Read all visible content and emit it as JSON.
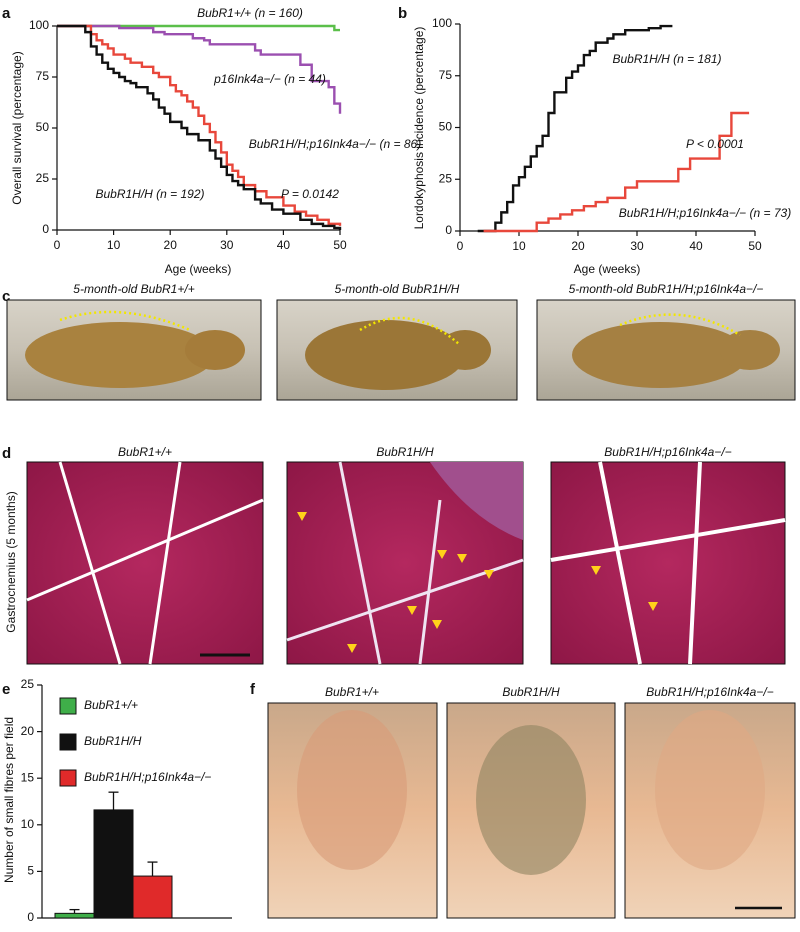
{
  "chart_data": [
    {
      "type": "line",
      "panel": "a",
      "drawstyle": "steps-post",
      "xlabel": "Age (weeks)",
      "ylabel": "Overall survival (percentage)",
      "xlim": [
        0,
        50
      ],
      "xticks": [
        0,
        10,
        20,
        30,
        40,
        50
      ],
      "ylim": [
        0,
        100
      ],
      "yticks": [
        0,
        25,
        50,
        75,
        100
      ],
      "series": [
        {
          "name": "BubR1+/+",
          "color": "#5bbf4a",
          "x": [
            0,
            49,
            50
          ],
          "values": [
            100,
            98,
            98
          ]
        },
        {
          "name": "p16Ink4a−/−",
          "color": "#9b4fb0",
          "x": [
            0,
            11,
            17,
            19,
            24,
            26,
            27,
            35,
            36,
            43,
            45,
            48,
            49,
            50
          ],
          "values": [
            100,
            99,
            97,
            96,
            94,
            93,
            91,
            88,
            86,
            81,
            73,
            70,
            62,
            57
          ]
        },
        {
          "name": "BubR1H/H;p16Ink4a−/−",
          "color": "#e8473b",
          "x": [
            0,
            6,
            7,
            8,
            9,
            10,
            12,
            13,
            15,
            17,
            18,
            20,
            21,
            22,
            23,
            24,
            25,
            26,
            27,
            28,
            29,
            30,
            31,
            32,
            33,
            35,
            37,
            40,
            42,
            44,
            46,
            48,
            50
          ],
          "values": [
            100,
            96,
            93,
            91,
            89,
            86,
            84,
            82,
            80,
            77,
            75,
            71,
            68,
            66,
            63,
            60,
            56,
            52,
            48,
            43,
            38,
            32,
            29,
            26,
            22,
            19,
            16,
            12,
            9,
            7,
            5,
            3,
            2
          ]
        },
        {
          "name": "BubR1H/H",
          "color": "#111111",
          "x": [
            0,
            5,
            6,
            7,
            8,
            9,
            10,
            11,
            12,
            13,
            14,
            16,
            17,
            18,
            19,
            20,
            22,
            23,
            25,
            27,
            28,
            29,
            30,
            31,
            32,
            33,
            35,
            36,
            38,
            40,
            43,
            45,
            47,
            49,
            50
          ],
          "values": [
            100,
            97,
            90,
            86,
            82,
            79,
            77,
            75,
            73,
            72,
            70,
            67,
            64,
            60,
            57,
            53,
            50,
            47,
            44,
            39,
            35,
            31,
            27,
            24,
            22,
            20,
            15,
            13,
            10,
            8,
            5,
            3,
            2,
            1,
            0
          ]
        }
      ],
      "annotations": [
        {
          "text": "BubR1+/+ (n = 160)",
          "color": "#5bbf4a"
        },
        {
          "text": "p16Ink4a−/− (n = 44)",
          "color": "#9b4fb0"
        },
        {
          "text": "BubR1H/H;p16Ink4a−/− (n = 86)",
          "color": "#e8473b"
        },
        {
          "text": "BubR1H/H (n = 192)",
          "color": "#111111"
        },
        {
          "text": "P = 0.0142",
          "color": "#111111"
        }
      ]
    },
    {
      "type": "line",
      "panel": "b",
      "drawstyle": "steps-post",
      "xlabel": "Age (weeks)",
      "ylabel": "Lordokyphosis incidence (percentage)",
      "xlim": [
        0,
        50
      ],
      "xticks": [
        0,
        10,
        20,
        30,
        40,
        50
      ],
      "ylim": [
        0,
        100
      ],
      "yticks": [
        0,
        25,
        50,
        75,
        100
      ],
      "series": [
        {
          "name": "BubR1H/H",
          "color": "#111111",
          "x": [
            3,
            6,
            7,
            8,
            9,
            10,
            11,
            12,
            13,
            14,
            15,
            16,
            18,
            19,
            20,
            21,
            22,
            23,
            25,
            26,
            28,
            30,
            32,
            34,
            36
          ],
          "values": [
            0,
            4,
            9,
            14,
            22,
            26,
            31,
            36,
            41,
            46,
            57,
            67,
            74,
            77,
            80,
            85,
            87,
            91,
            93,
            95,
            97,
            97,
            98,
            99,
            99
          ]
        },
        {
          "name": "BubR1H/H;p16Ink4a−/−",
          "color": "#e8473b",
          "x": [
            4,
            13,
            15,
            17,
            19,
            21,
            23,
            25,
            28,
            30,
            35,
            37,
            39,
            44,
            46,
            49
          ],
          "values": [
            0,
            4,
            6,
            8,
            10,
            12,
            14,
            16,
            21,
            24,
            24,
            30,
            35,
            46,
            57,
            57
          ]
        }
      ],
      "annotations": [
        {
          "text": "BubR1H/H (n = 181)",
          "color": "#111111"
        },
        {
          "text": "P < 0.0001",
          "color": "#111111"
        },
        {
          "text": "BubR1H/H;p16Ink4a−/− (n = 73)",
          "color": "#e8473b"
        }
      ]
    },
    {
      "type": "bar",
      "panel": "e",
      "ylabel": "Number of small fibres per field",
      "categories": [
        "BubR1+/+",
        "BubR1H/H",
        "BubR1H/H;p16Ink4a−/−"
      ],
      "colors": [
        "#3fae49",
        "#111111",
        "#e02a2a"
      ],
      "values": [
        0.5,
        11.6,
        4.5
      ],
      "errors": [
        0.4,
        1.9,
        1.5
      ],
      "ylim": [
        0,
        25
      ],
      "yticks": [
        0,
        5,
        10,
        15,
        20,
        25
      ]
    }
  ],
  "panels": {
    "c": {
      "panel": "c",
      "captions": [
        "5-month-old BubR1+/+",
        "5-month-old BubR1H/H",
        "5-month-old BubR1H/H;p16Ink4a−/−"
      ]
    },
    "d": {
      "panel": "d",
      "ylabel": "Gastrocnemius (5 months)",
      "captions": [
        "BubR1+/+",
        "BubR1H/H",
        "BubR1H/H;p16Ink4a−/−"
      ]
    },
    "f": {
      "panel": "f",
      "captions": [
        "BubR1+/+",
        "BubR1H/H",
        "BubR1H/H;p16Ink4a−/−"
      ]
    }
  }
}
